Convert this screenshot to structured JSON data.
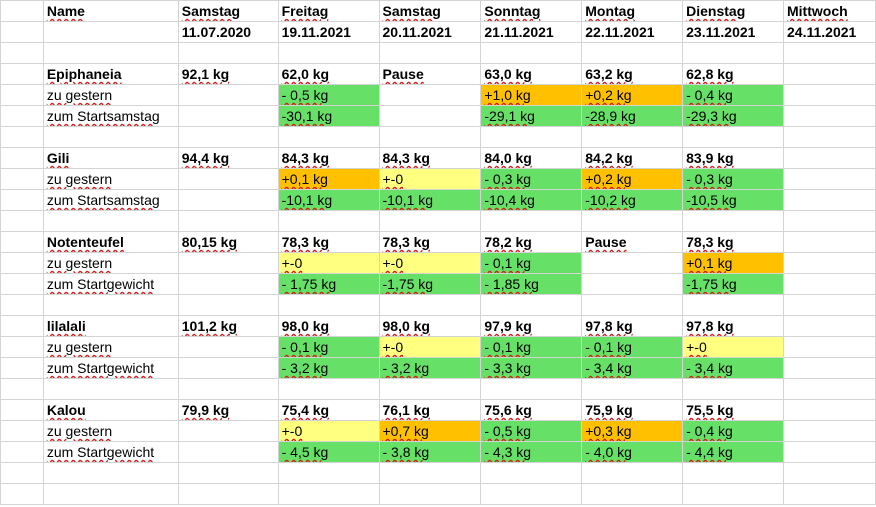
{
  "header": {
    "name_label": "Name",
    "days": [
      {
        "day": "Samstag",
        "date": "11.07.2020"
      },
      {
        "day": "Freitag",
        "date": "19.11.2021"
      },
      {
        "day": "Samstag",
        "date": "20.11.2021"
      },
      {
        "day": "Sonntag",
        "date": "21.11.2021"
      },
      {
        "day": "Montag",
        "date": "22.11.2021"
      },
      {
        "day": "Dienstag",
        "date": "23.11.2021"
      },
      {
        "day": "Mittwoch",
        "date": "24.11.2021"
      }
    ]
  },
  "colors": {
    "green": "#66e066",
    "orange": "#ffc000",
    "yellow": "#ffff80"
  },
  "people": [
    {
      "name": "Epiphaneia",
      "weights": [
        "92,1 kg",
        "62,0 kg",
        "Pause",
        "63,0 kg",
        "63,2 kg",
        "62,8 kg",
        ""
      ],
      "row2_label": "zu gestern",
      "row2": [
        {
          "v": "",
          "c": ""
        },
        {
          "v": "- 0,5 kg",
          "c": "g"
        },
        {
          "v": "",
          "c": ""
        },
        {
          "v": "+1,0 kg",
          "c": "o"
        },
        {
          "v": "+0,2 kg",
          "c": "o"
        },
        {
          "v": "- 0,4 kg",
          "c": "g"
        },
        {
          "v": "",
          "c": ""
        }
      ],
      "row3_label": "zum Startsamstag",
      "row3": [
        {
          "v": "",
          "c": ""
        },
        {
          "v": "-30,1 kg",
          "c": "g"
        },
        {
          "v": "",
          "c": ""
        },
        {
          "v": "-29,1 kg",
          "c": "g"
        },
        {
          "v": "-28,9 kg",
          "c": "g"
        },
        {
          "v": "-29,3 kg",
          "c": "g"
        },
        {
          "v": "",
          "c": ""
        }
      ]
    },
    {
      "name": "Gili",
      "weights": [
        "94,4 kg",
        "84,3 kg",
        "84,3 kg",
        "84,0 kg",
        "84,2 kg",
        "83,9 kg",
        ""
      ],
      "row2_label": "zu gestern",
      "row2": [
        {
          "v": "",
          "c": ""
        },
        {
          "v": "+0,1 kg",
          "c": "o"
        },
        {
          "v": "+-0",
          "c": "y"
        },
        {
          "v": "- 0,3 kg",
          "c": "g"
        },
        {
          "v": "+0,2 kg",
          "c": "o"
        },
        {
          "v": "- 0,3 kg",
          "c": "g"
        },
        {
          "v": "",
          "c": ""
        }
      ],
      "row3_label": "zum Startsamstag",
      "row3": [
        {
          "v": "",
          "c": ""
        },
        {
          "v": "-10,1 kg",
          "c": "g"
        },
        {
          "v": "-10,1 kg",
          "c": "g"
        },
        {
          "v": "-10,4 kg",
          "c": "g"
        },
        {
          "v": "-10,2 kg",
          "c": "g"
        },
        {
          "v": "-10,5 kg",
          "c": "g"
        },
        {
          "v": "",
          "c": ""
        }
      ]
    },
    {
      "name": "Notenteufel",
      "weights": [
        "80,15 kg",
        "78,3 kg",
        "78,3 kg",
        "78,2 kg",
        "Pause",
        "78,3 kg",
        ""
      ],
      "row2_label": "zu gestern",
      "row2": [
        {
          "v": "",
          "c": ""
        },
        {
          "v": "+-0",
          "c": "y"
        },
        {
          "v": "+-0",
          "c": "y"
        },
        {
          "v": "- 0,1 kg",
          "c": "g"
        },
        {
          "v": "",
          "c": ""
        },
        {
          "v": "+0,1 kg",
          "c": "o"
        },
        {
          "v": "",
          "c": ""
        }
      ],
      "row3_label": "zum Startgewicht",
      "row3": [
        {
          "v": "",
          "c": ""
        },
        {
          "v": "- 1,75 kg",
          "c": "g"
        },
        {
          "v": "-1,75 kg",
          "c": "g"
        },
        {
          "v": "- 1,85 kg",
          "c": "g"
        },
        {
          "v": "",
          "c": ""
        },
        {
          "v": "-1,75 kg",
          "c": "g"
        },
        {
          "v": "",
          "c": ""
        }
      ]
    },
    {
      "name": "lilalali",
      "weights": [
        "101,2 kg",
        "98,0 kg",
        "98,0 kg",
        "97,9 kg",
        "97,8 kg",
        "97,8 kg",
        ""
      ],
      "row2_label": "zu gestern",
      "row2": [
        {
          "v": "",
          "c": ""
        },
        {
          "v": "- 0,1 kg",
          "c": "g"
        },
        {
          "v": "+-0",
          "c": "y"
        },
        {
          "v": "- 0,1 kg",
          "c": "g"
        },
        {
          "v": "- 0,1 kg",
          "c": "g"
        },
        {
          "v": "+-0",
          "c": "y"
        },
        {
          "v": "",
          "c": ""
        }
      ],
      "row3_label": "zum Startgewicht",
      "row3": [
        {
          "v": "",
          "c": ""
        },
        {
          "v": "- 3,2 kg",
          "c": "g"
        },
        {
          "v": "- 3,2 kg",
          "c": "g"
        },
        {
          "v": "- 3,3 kg",
          "c": "g"
        },
        {
          "v": "- 3,4 kg",
          "c": "g"
        },
        {
          "v": "- 3,4 kg",
          "c": "g"
        },
        {
          "v": "",
          "c": ""
        }
      ]
    },
    {
      "name": "Kalou",
      "weights": [
        "79,9 kg",
        "75,4 kg",
        "76,1 kg",
        "75,6 kg",
        "75,9 kg",
        "75,5 kg",
        ""
      ],
      "row2_label": "zu gestern",
      "row2": [
        {
          "v": "",
          "c": ""
        },
        {
          "v": "+-0",
          "c": "y"
        },
        {
          "v": "+0,7 kg",
          "c": "o"
        },
        {
          "v": "- 0,5 kg",
          "c": "g"
        },
        {
          "v": "+0,3 kg",
          "c": "o"
        },
        {
          "v": "- 0,4 kg",
          "c": "g"
        },
        {
          "v": "",
          "c": ""
        }
      ],
      "row3_label": "zum Startgewicht",
      "row3": [
        {
          "v": "",
          "c": ""
        },
        {
          "v": "- 4,5 kg",
          "c": "g"
        },
        {
          "v": "- 3,8 kg",
          "c": "g"
        },
        {
          "v": "- 4,3 kg",
          "c": "g"
        },
        {
          "v": "- 4,0 kg",
          "c": "g"
        },
        {
          "v": "- 4,4 kg",
          "c": "g"
        },
        {
          "v": "",
          "c": ""
        }
      ]
    }
  ]
}
